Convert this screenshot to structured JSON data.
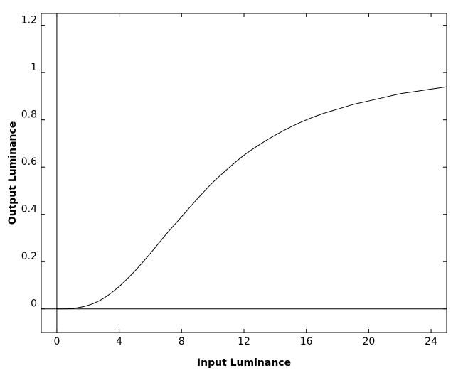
{
  "chart_data": {
    "type": "line",
    "title": "",
    "xlabel": "Input Luminance",
    "ylabel": "Output Luminance",
    "xlim": [
      -1,
      25
    ],
    "ylim": [
      -0.1,
      1.25
    ],
    "xticks": [
      0,
      4,
      8,
      12,
      16,
      20,
      24
    ],
    "yticks": [
      0,
      0.2,
      0.4,
      0.6,
      0.8,
      1,
      1.2
    ],
    "xtick_labels": [
      "0",
      "4",
      "8",
      "12",
      "16",
      "20",
      "24"
    ],
    "ytick_labels": [
      "0",
      "0.2",
      "0.4",
      "0.6",
      "0.8",
      "1",
      "1.2"
    ],
    "grid": false,
    "zero_lines": true,
    "line_color": "#000000",
    "series": [
      {
        "x": [
          0,
          1,
          2,
          3,
          4,
          5,
          6,
          7,
          8,
          9,
          10,
          11,
          12,
          13,
          14,
          15,
          16,
          17,
          18,
          19,
          20,
          21,
          22,
          23,
          24,
          25
        ],
        "y": [
          0,
          0.002,
          0.015,
          0.045,
          0.095,
          0.16,
          0.235,
          0.315,
          0.39,
          0.465,
          0.535,
          0.595,
          0.65,
          0.695,
          0.735,
          0.77,
          0.8,
          0.825,
          0.845,
          0.865,
          0.88,
          0.895,
          0.91,
          0.92,
          0.93,
          0.94
        ]
      }
    ]
  }
}
